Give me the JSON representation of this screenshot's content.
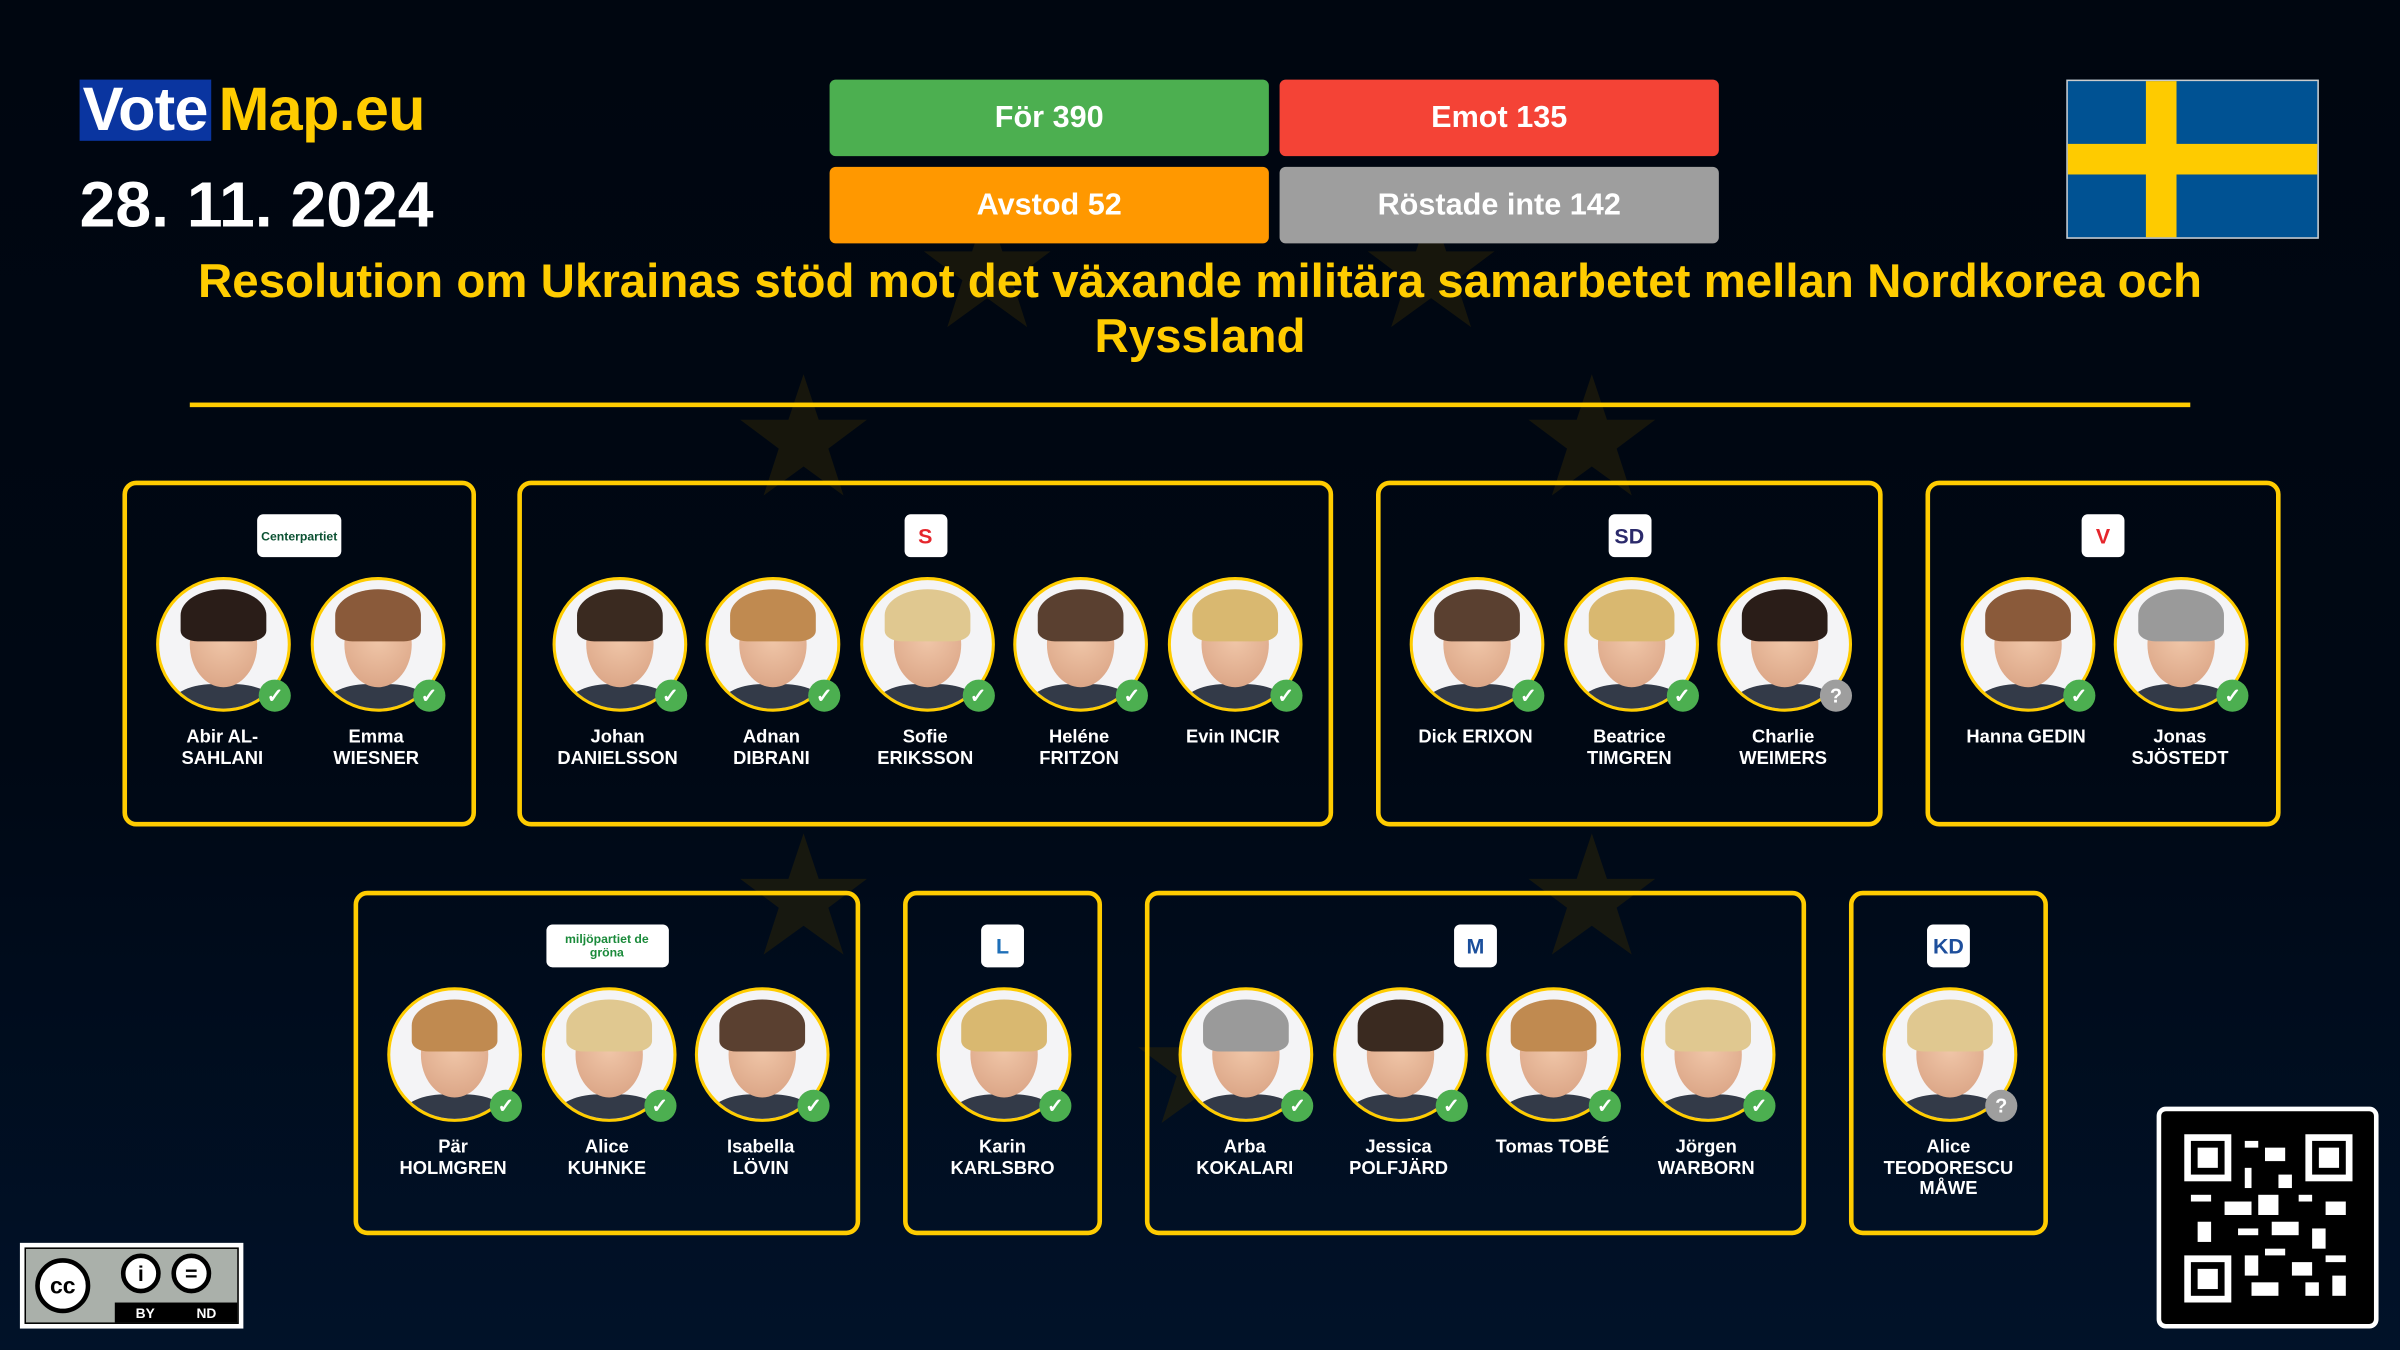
{
  "brand": {
    "vote": "Vote",
    "map": "Map.eu"
  },
  "date": "28. 11. 2024",
  "results": {
    "for": {
      "label": "För 390",
      "color": "#4CAF50"
    },
    "against": {
      "label": "Emot 135",
      "color": "#F44336"
    },
    "abstain": {
      "label": "Avstod 52",
      "color": "#FF9800"
    },
    "not_voted": {
      "label": "Röstade inte 142",
      "color": "#9E9E9E"
    }
  },
  "country_flag": "sweden-flag",
  "title": "Resolution om Ukrainas stöd mot det växande militära samarbetet mellan Nordkorea och Ryssland",
  "accent_color": "#FFCC00",
  "parties": [
    {
      "logo": "Centerpartiet",
      "logo_color": "#0b5132",
      "members": [
        {
          "first": "Abir AL-",
          "last": "SAHLANI",
          "vote": "for"
        },
        {
          "first": "Emma",
          "last": "WIESNER",
          "vote": "for"
        }
      ]
    },
    {
      "logo": "S",
      "logo_color": "#e5262c",
      "members": [
        {
          "first": "Johan",
          "last": "DANIELSSON",
          "vote": "for"
        },
        {
          "first": "Adnan",
          "last": "DIBRANI",
          "vote": "for"
        },
        {
          "first": "Sofie",
          "last": "ERIKSSON",
          "vote": "for"
        },
        {
          "first": "Heléne",
          "last": "FRITZON",
          "vote": "for"
        },
        {
          "first": "Evin INCIR",
          "last": "",
          "vote": "for"
        }
      ]
    },
    {
      "logo": "SD",
      "logo_color": "#2b2a6b",
      "members": [
        {
          "first": "Dick ERIXON",
          "last": "",
          "vote": "for"
        },
        {
          "first": "Beatrice",
          "last": "TIMGREN",
          "vote": "for"
        },
        {
          "first": "Charlie",
          "last": "WEIMERS",
          "vote": "not_voted"
        }
      ]
    },
    {
      "logo": "V",
      "logo_color": "#e5262c",
      "members": [
        {
          "first": "Hanna GEDIN",
          "last": "",
          "vote": "for"
        },
        {
          "first": "Jonas",
          "last": "SJÖSTEDT",
          "vote": "for"
        }
      ]
    },
    {
      "logo": "miljöpartiet de gröna",
      "logo_color": "#1a8a3a",
      "members": [
        {
          "first": "Pär",
          "last": "HOLMGREN",
          "vote": "for"
        },
        {
          "first": "Alice",
          "last": "KUHNKE",
          "vote": "for"
        },
        {
          "first": "Isabella",
          "last": "LÖVIN",
          "vote": "for"
        }
      ]
    },
    {
      "logo": "L",
      "logo_color": "#1e6fb8",
      "members": [
        {
          "first": "Karin",
          "last": "KARLSBRO",
          "vote": "for"
        }
      ]
    },
    {
      "logo": "M",
      "logo_color": "#1b4f9c",
      "members": [
        {
          "first": "Arba",
          "last": "KOKALARI",
          "vote": "for"
        },
        {
          "first": "Jessica",
          "last": "POLFJÄRD",
          "vote": "for"
        },
        {
          "first": "Tomas TOBÉ",
          "last": "",
          "vote": "for"
        },
        {
          "first": "Jörgen",
          "last": "WARBORN",
          "vote": "for"
        }
      ]
    },
    {
      "logo": "KD",
      "logo_color": "#1e4f9c",
      "members": [
        {
          "first": "Alice",
          "last": "TEODORESCU",
          "last2": "MÅWE",
          "vote": "not_voted"
        }
      ]
    }
  ],
  "license": {
    "by": "BY",
    "nd": "ND"
  }
}
